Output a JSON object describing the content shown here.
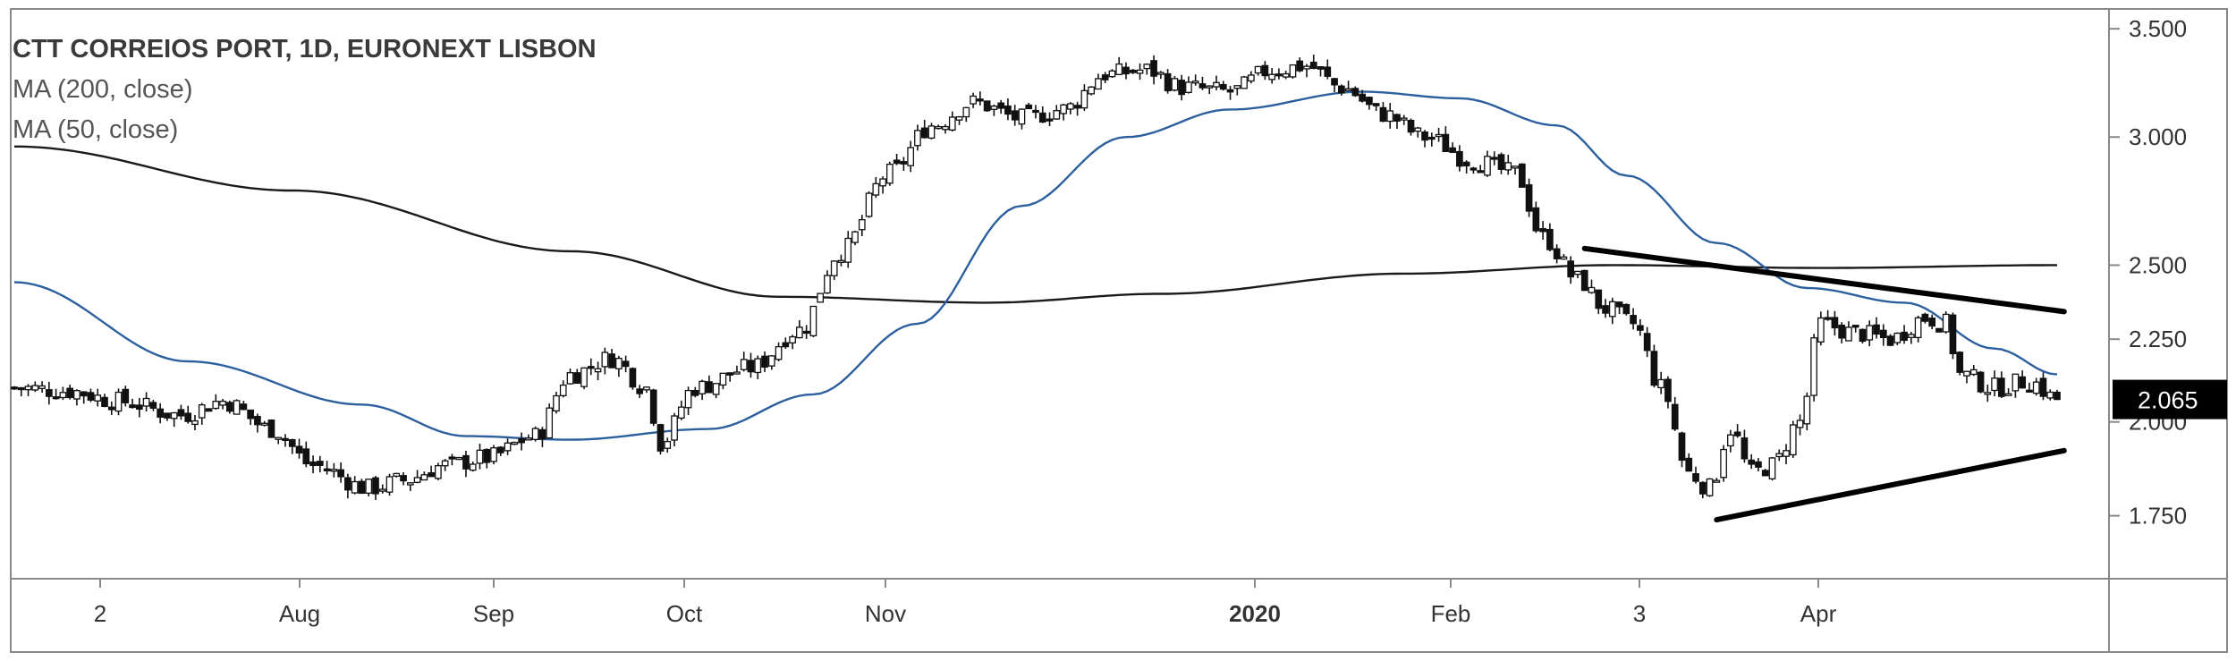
{
  "chart_data": {
    "type": "candlestick",
    "title": "CTT CORREIOS PORT, 1D, EURONEXT LISBON",
    "indicators": [
      {
        "name": "MA (200, close)",
        "color": "#1a1a1a"
      },
      {
        "name": "MA (50, close)",
        "color": "#2c5f9e"
      }
    ],
    "y_ticks": [
      "3.500",
      "3.000",
      "2.500",
      "2.250",
      "2.000",
      "1.750"
    ],
    "y_tick_values": [
      3.5,
      3.0,
      2.5,
      2.25,
      2.0,
      1.75
    ],
    "ylim": [
      1.6,
      3.6
    ],
    "y_scale": "log",
    "last_price_label": "2.065",
    "last_price": 2.065,
    "x_ticks": [
      {
        "label": "2",
        "month": 7,
        "bold": false
      },
      {
        "label": "Aug",
        "month": 8,
        "bold": false
      },
      {
        "label": "Sep",
        "month": 9,
        "bold": false
      },
      {
        "label": "Oct",
        "month": 10,
        "bold": false
      },
      {
        "label": "Nov",
        "month": 11,
        "bold": false
      },
      {
        "label": "2020",
        "month": 13,
        "bold": true
      },
      {
        "label": "Feb",
        "month": 14,
        "bold": false
      },
      {
        "label": "3",
        "month": 15,
        "bold": false
      },
      {
        "label": "Apr",
        "month": 16,
        "bold": false
      }
    ],
    "close_anchors": [
      [
        0,
        2.1
      ],
      [
        8,
        2.09
      ],
      [
        15,
        2.06
      ],
      [
        24,
        2.02
      ],
      [
        30,
        2.06
      ],
      [
        37,
        1.98
      ],
      [
        43,
        1.88
      ],
      [
        51,
        1.82
      ],
      [
        56,
        1.84
      ],
      [
        62,
        1.88
      ],
      [
        68,
        1.9
      ],
      [
        75,
        1.96
      ],
      [
        80,
        2.14
      ],
      [
        86,
        2.19
      ],
      [
        91,
        2.1
      ],
      [
        93,
        1.94
      ],
      [
        98,
        2.1
      ],
      [
        106,
        2.16
      ],
      [
        113,
        2.28
      ],
      [
        119,
        2.55
      ],
      [
        126,
        2.85
      ],
      [
        132,
        3.05
      ],
      [
        138,
        3.15
      ],
      [
        145,
        3.08
      ],
      [
        151,
        3.12
      ],
      [
        157,
        3.28
      ],
      [
        163,
        3.3
      ],
      [
        168,
        3.22
      ],
      [
        175,
        3.2
      ],
      [
        181,
        3.3
      ],
      [
        186,
        3.32
      ],
      [
        191,
        3.22
      ],
      [
        197,
        3.1
      ],
      [
        203,
        3.0
      ],
      [
        210,
        2.9
      ],
      [
        216,
        2.85
      ],
      [
        220,
        2.6
      ],
      [
        225,
        2.45
      ],
      [
        229,
        2.35
      ],
      [
        233,
        2.3
      ],
      [
        237,
        2.1
      ],
      [
        241,
        1.86
      ],
      [
        244,
        1.82
      ],
      [
        247,
        1.98
      ],
      [
        250,
        1.86
      ],
      [
        253,
        1.88
      ],
      [
        257,
        2.0
      ],
      [
        260,
        2.3
      ],
      [
        265,
        2.27
      ],
      [
        270,
        2.25
      ],
      [
        275,
        2.32
      ],
      [
        278,
        2.3
      ],
      [
        280,
        2.14
      ],
      [
        285,
        2.1
      ],
      [
        290,
        2.12
      ],
      [
        294,
        2.065
      ]
    ],
    "ma50_anchors": [
      [
        0,
        2.44
      ],
      [
        25,
        2.18
      ],
      [
        50,
        2.05
      ],
      [
        65,
        1.96
      ],
      [
        80,
        1.95
      ],
      [
        100,
        1.98
      ],
      [
        115,
        2.08
      ],
      [
        130,
        2.3
      ],
      [
        145,
        2.72
      ],
      [
        160,
        3.0
      ],
      [
        175,
        3.12
      ],
      [
        194,
        3.2
      ],
      [
        208,
        3.17
      ],
      [
        222,
        3.05
      ],
      [
        232,
        2.84
      ],
      [
        245,
        2.58
      ],
      [
        258,
        2.42
      ],
      [
        272,
        2.37
      ],
      [
        285,
        2.22
      ],
      [
        294,
        2.14
      ]
    ],
    "ma200_anchors": [
      [
        0,
        2.96
      ],
      [
        40,
        2.78
      ],
      [
        80,
        2.55
      ],
      [
        110,
        2.39
      ],
      [
        140,
        2.37
      ],
      [
        165,
        2.4
      ],
      [
        200,
        2.47
      ],
      [
        230,
        2.5
      ],
      [
        260,
        2.49
      ],
      [
        294,
        2.5
      ]
    ],
    "trendlines": [
      {
        "name": "upper",
        "from": [
          226,
          2.56
        ],
        "to": [
          295,
          2.34
        ]
      },
      {
        "name": "lower",
        "from": [
          245,
          1.74
        ],
        "to": [
          295,
          1.92
        ]
      }
    ],
    "grid": false,
    "legend_position": "top-left"
  }
}
